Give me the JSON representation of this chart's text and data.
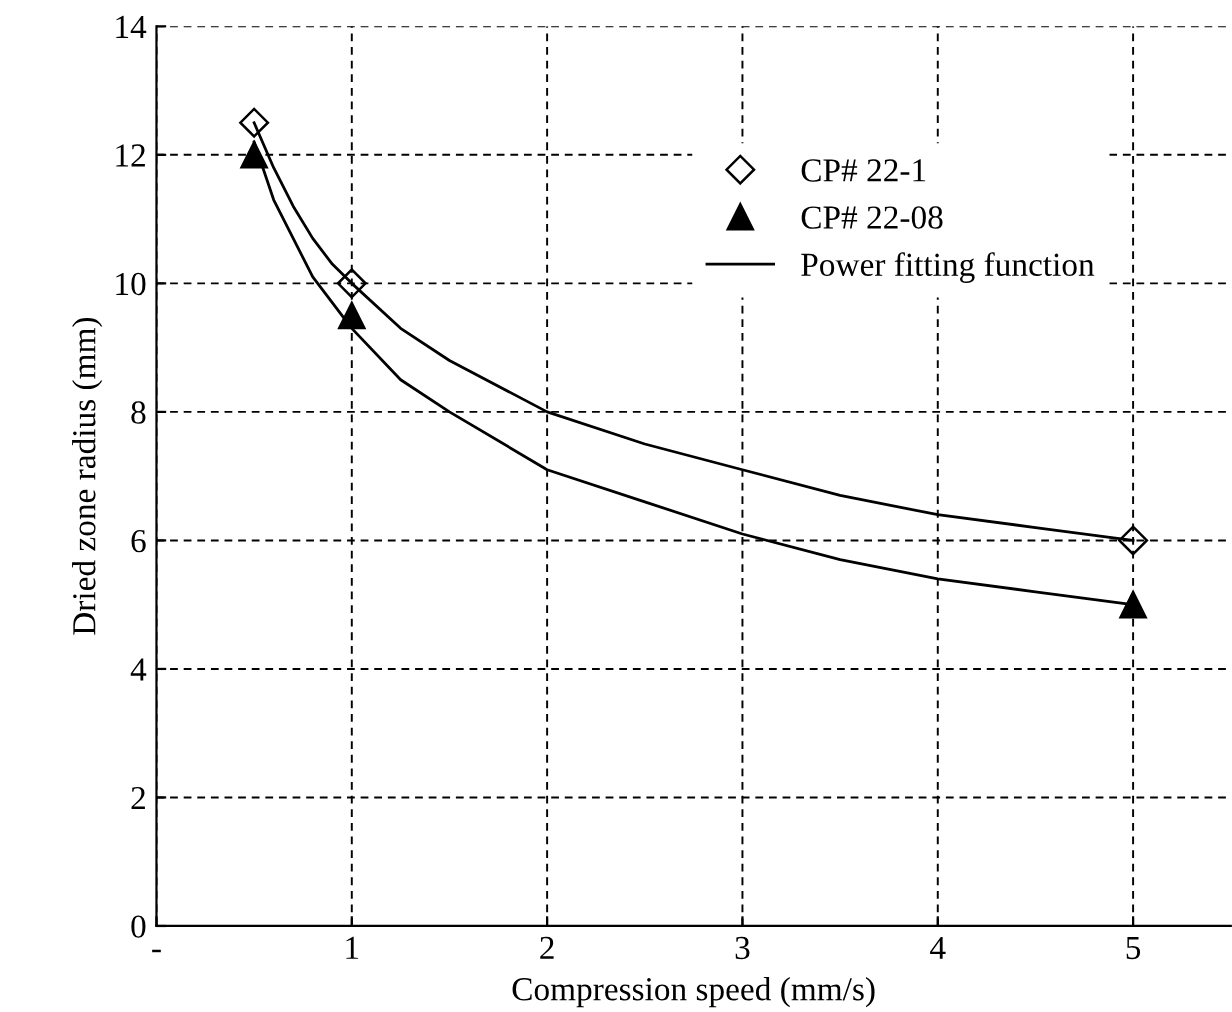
{
  "chart_data": {
    "type": "scatter",
    "xlabel": "Compression speed (mm/s)",
    "ylabel": "Dried zone radius (mm)",
    "xlim": [
      0,
      5.5
    ],
    "ylim": [
      0,
      14
    ],
    "xticks": [
      {
        "value": 0,
        "label": "-"
      },
      1,
      2,
      3,
      4,
      5
    ],
    "yticks": [
      0,
      2,
      4,
      6,
      8,
      10,
      12,
      14
    ],
    "grid": true,
    "legend": "top right",
    "series": [
      {
        "name": "CP# 22-1",
        "marker": "diamond",
        "color": "#000000",
        "x": [
          0.5,
          1,
          5
        ],
        "values": [
          12.5,
          10,
          6
        ]
      },
      {
        "name": "CP# 22-08",
        "marker": "triangle",
        "color": "#000000",
        "x": [
          0.5,
          1,
          5
        ],
        "values": [
          12,
          9.5,
          5
        ]
      },
      {
        "name": "Power fitting function",
        "type": "line",
        "marker": "none",
        "line_style": "solid",
        "color": "#000000",
        "x": [
          0.5,
          0.6,
          0.7,
          0.8,
          0.9,
          1,
          1.25,
          1.5,
          2,
          2.5,
          3,
          3.5,
          4,
          4.5,
          5
        ],
        "values": [
          12.5,
          11.8,
          11.2,
          10.7,
          10.3,
          10.0,
          9.3,
          8.8,
          8.0,
          7.5,
          7.1,
          6.7,
          6.4,
          6.2,
          6.0
        ]
      },
      {
        "type": "line",
        "marker": "none",
        "line_style": "solid",
        "color": "#000000",
        "x": [
          0.5,
          0.6,
          0.7,
          0.8,
          0.9,
          1,
          1.25,
          1.5,
          2,
          2.5,
          3,
          3.5,
          4,
          4.5,
          5
        ],
        "values": [
          12.2,
          11.3,
          10.7,
          10.1,
          9.7,
          9.3,
          8.5,
          8.0,
          7.1,
          6.6,
          6.1,
          5.7,
          5.4,
          5.2,
          5.0
        ]
      }
    ]
  }
}
